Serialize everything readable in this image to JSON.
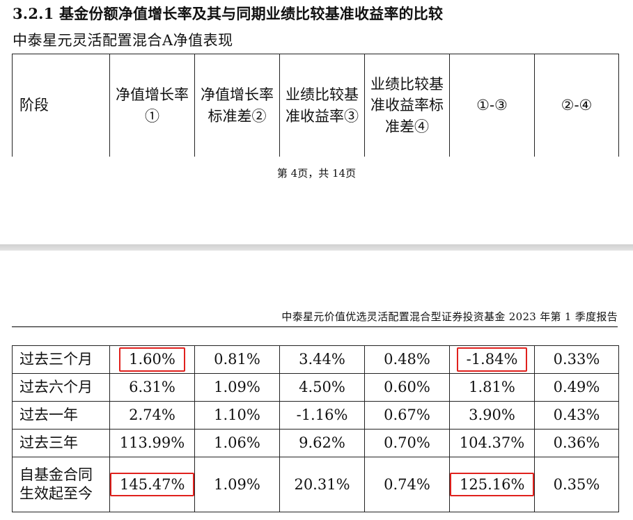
{
  "section_title": "3.2.1 基金份额净值增长率及其与同期业绩比较基准收益率的比较",
  "subtitle": "中泰星元灵活配置混合A净值表现",
  "columns": [
    "阶段",
    "净值增长率①",
    "净值增长率标准差②",
    "业绩比较基准收益率③",
    "业绩比较基准收益率标准差④",
    "①-③",
    "②-④"
  ],
  "page_footer": "第 4页，共 14页",
  "running_header": "中泰星元价值优选灵活配置混合型证券投资基金 2023 年第 1 季度报告",
  "rows": [
    {
      "stage": "过去三个月",
      "c1": "1.60%",
      "c2": "0.81%",
      "c3": "3.44%",
      "c4": "0.48%",
      "c5": "-1.84%",
      "c6": "0.33%"
    },
    {
      "stage": "过去六个月",
      "c1": "6.31%",
      "c2": "1.09%",
      "c3": "4.50%",
      "c4": "0.60%",
      "c5": "1.81%",
      "c6": "0.49%"
    },
    {
      "stage": "过去一年",
      "c1": "2.74%",
      "c2": "1.10%",
      "c3": "-1.16%",
      "c4": "0.67%",
      "c5": "3.90%",
      "c6": "0.43%"
    },
    {
      "stage": "过去三年",
      "c1": "113.99%",
      "c2": "1.06%",
      "c3": "9.62%",
      "c4": "0.70%",
      "c5": "104.37%",
      "c6": "0.36%"
    },
    {
      "stage": "自基金合同生效起至今",
      "c1": "145.47%",
      "c2": "1.09%",
      "c3": "20.31%",
      "c4": "0.74%",
      "c5": "125.16%",
      "c6": "0.35%"
    }
  ],
  "highlight_color": "#e0211d"
}
